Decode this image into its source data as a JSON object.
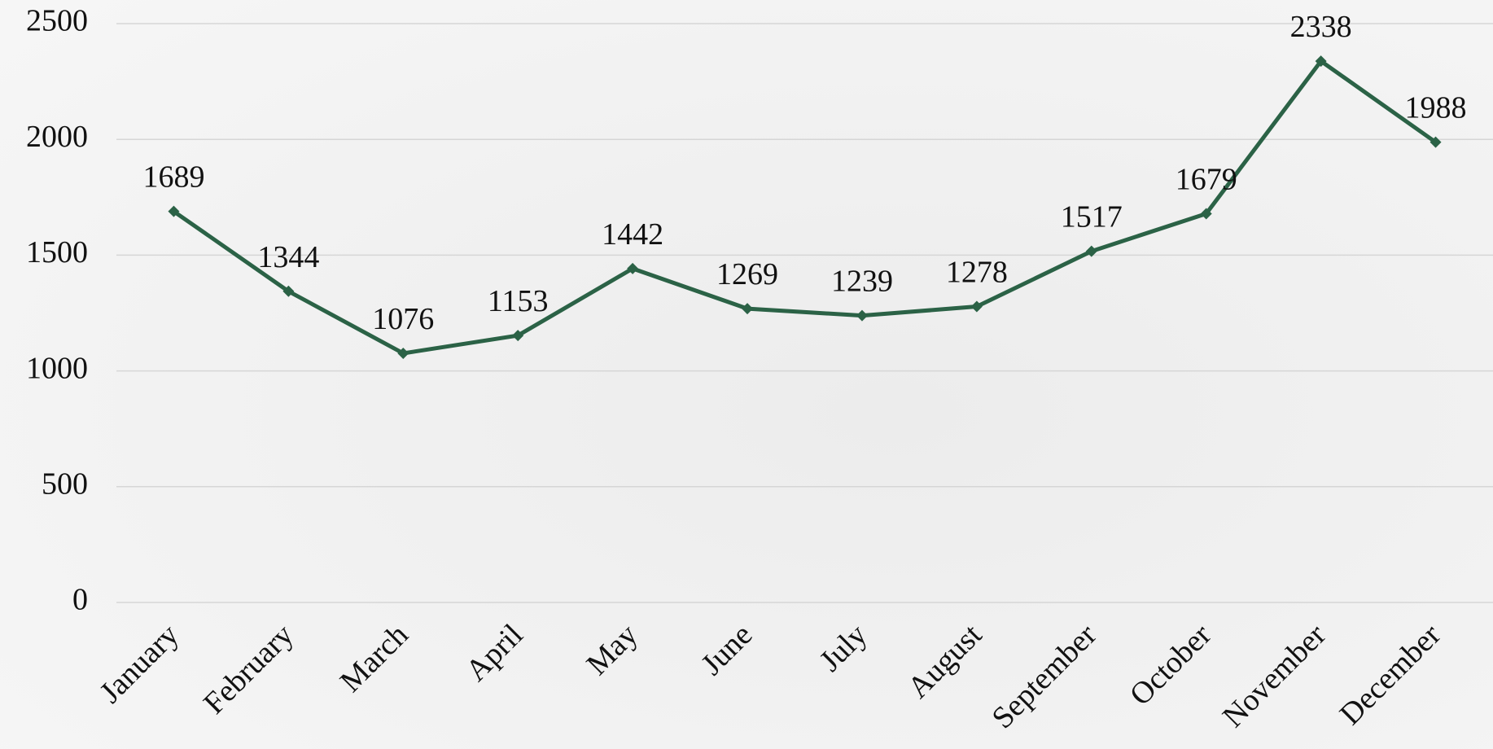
{
  "chart_data": {
    "type": "line",
    "categories": [
      "January",
      "February",
      "March",
      "April",
      "May",
      "June",
      "July",
      "August",
      "September",
      "October",
      "November",
      "December"
    ],
    "values": [
      1689,
      1344,
      1076,
      1153,
      1442,
      1269,
      1239,
      1278,
      1517,
      1679,
      2338,
      1988
    ],
    "color": "#2b6246",
    "ylim": [
      0,
      2500
    ],
    "yticks": [
      0,
      500,
      1000,
      1500,
      2000,
      2500
    ],
    "grid": true
  }
}
